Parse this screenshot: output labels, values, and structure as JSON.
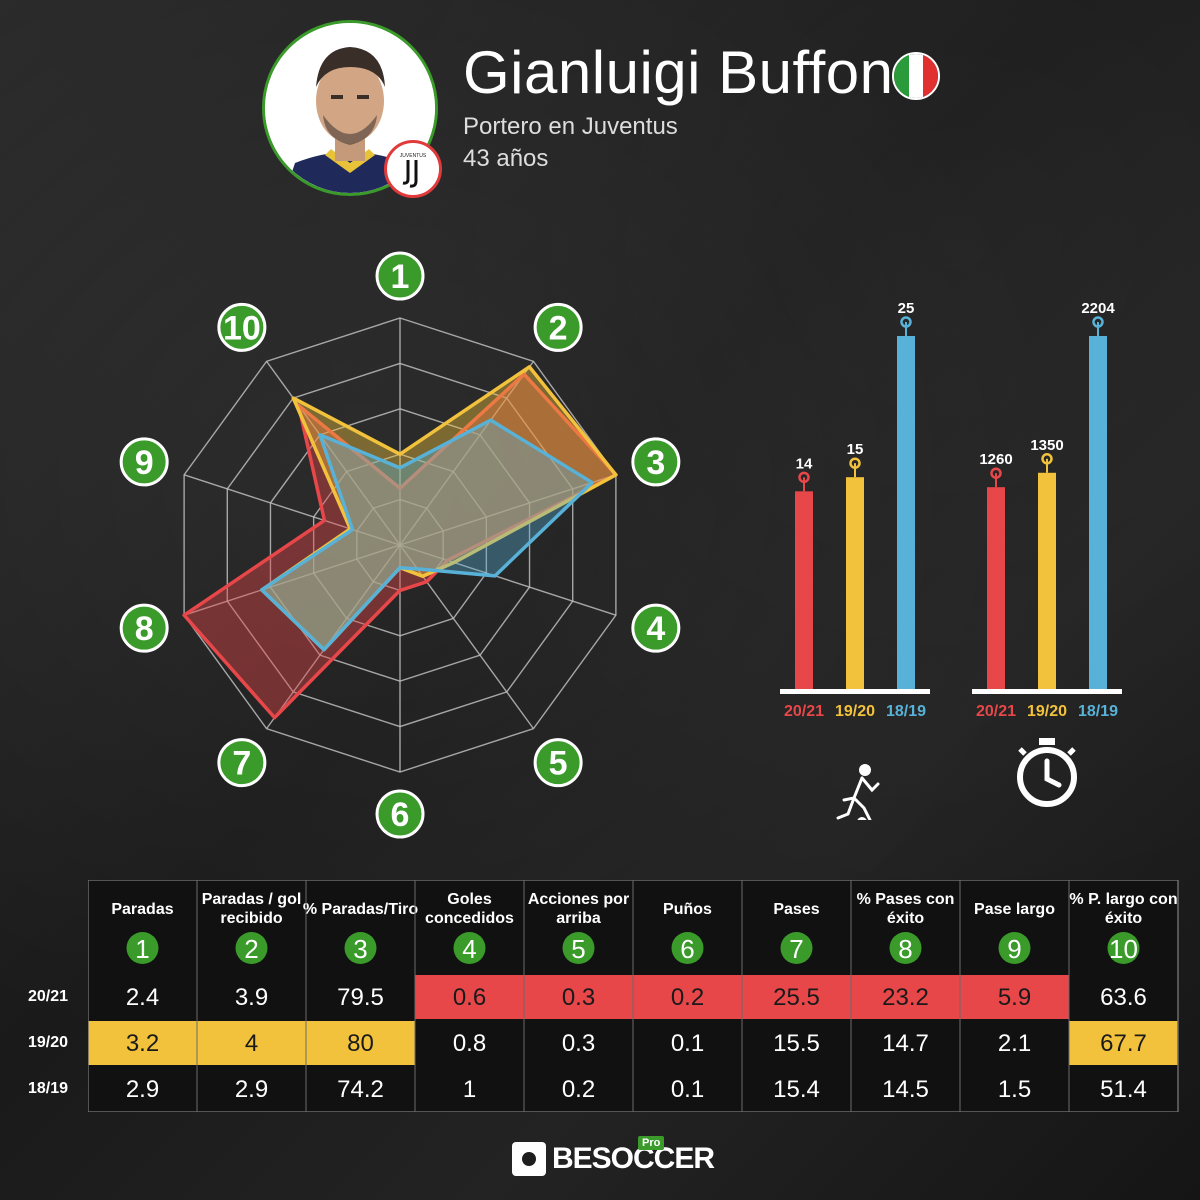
{
  "player": {
    "name": "Gianluigi Buffon",
    "role": "Portero en Juventus",
    "age": "43 años"
  },
  "colors": {
    "s2021": "#e8474a",
    "s1920": "#f2c23c",
    "s1819": "#58b2d8",
    "green": "#3a9a2a"
  },
  "icons": [
    "player-kicking-icon",
    "stopwatch-icon",
    "italy-flag-icon",
    "juventus-badge-icon"
  ],
  "chart_data": [
    {
      "type": "radar",
      "axes": [
        "1",
        "2",
        "3",
        "4",
        "5",
        "6",
        "7",
        "8",
        "9",
        "10"
      ],
      "series": [
        {
          "name": "20/21",
          "values": [
            0.25,
            0.93,
            1.0,
            0.22,
            0.2,
            0.2,
            0.94,
            1.0,
            0.35,
            0.76
          ]
        },
        {
          "name": "19/20",
          "values": [
            0.4,
            0.97,
            1.0,
            0.25,
            0.17,
            0.1,
            0.57,
            0.64,
            0.23,
            0.8
          ]
        },
        {
          "name": "18/19",
          "values": [
            0.34,
            0.68,
            0.89,
            0.44,
            0.13,
            0.1,
            0.57,
            0.64,
            0.22,
            0.6
          ]
        }
      ]
    },
    {
      "type": "bar",
      "icon": "player-kicking-icon",
      "categories": [
        "20/21",
        "19/20",
        "18/19"
      ],
      "values": [
        14,
        15,
        25
      ],
      "labels": [
        "14",
        "15",
        "25"
      ],
      "ylim": [
        0,
        25
      ]
    },
    {
      "type": "bar",
      "icon": "stopwatch-icon",
      "categories": [
        "20/21",
        "19/20",
        "18/19"
      ],
      "values": [
        1260,
        1350,
        2204
      ],
      "labels": [
        "1260",
        "1350",
        "2204"
      ],
      "ylim": [
        0,
        2204
      ]
    },
    {
      "type": "table",
      "columns": [
        {
          "label": "Paradas",
          "num": "1"
        },
        {
          "label": "Paradas / gol recibido",
          "num": "2"
        },
        {
          "label": "% Paradas/Tiro",
          "num": "3"
        },
        {
          "label": "Goles concedidos",
          "num": "4"
        },
        {
          "label": "Acciones por arriba",
          "num": "5"
        },
        {
          "label": "Puños",
          "num": "6"
        },
        {
          "label": "Pases",
          "num": "7"
        },
        {
          "label": "% Pases con éxito",
          "num": "8"
        },
        {
          "label": "Pase largo",
          "num": "9"
        },
        {
          "label": "% P. largo con éxito",
          "num": "10"
        }
      ],
      "rows": [
        {
          "season": "20/21",
          "values": [
            "2.4",
            "3.9",
            "79.5",
            "0.6",
            "0.3",
            "0.2",
            "25.5",
            "23.2",
            "5.9",
            "63.6"
          ],
          "highlight": [
            false,
            false,
            false,
            true,
            true,
            true,
            true,
            true,
            true,
            false
          ]
        },
        {
          "season": "19/20",
          "values": [
            "3.2",
            "4",
            "80",
            "0.8",
            "0.3",
            "0.1",
            "15.5",
            "14.7",
            "2.1",
            "67.7"
          ],
          "highlight": [
            true,
            true,
            true,
            false,
            false,
            false,
            false,
            false,
            false,
            true
          ]
        },
        {
          "season": "18/19",
          "values": [
            "2.9",
            "2.9",
            "74.2",
            "1",
            "0.2",
            "0.1",
            "15.4",
            "14.5",
            "1.5",
            "51.4"
          ],
          "highlight": [
            false,
            false,
            false,
            false,
            false,
            false,
            false,
            false,
            false,
            false
          ]
        }
      ]
    }
  ],
  "brand": {
    "name": "BESOCCER",
    "tag": "Pro"
  }
}
